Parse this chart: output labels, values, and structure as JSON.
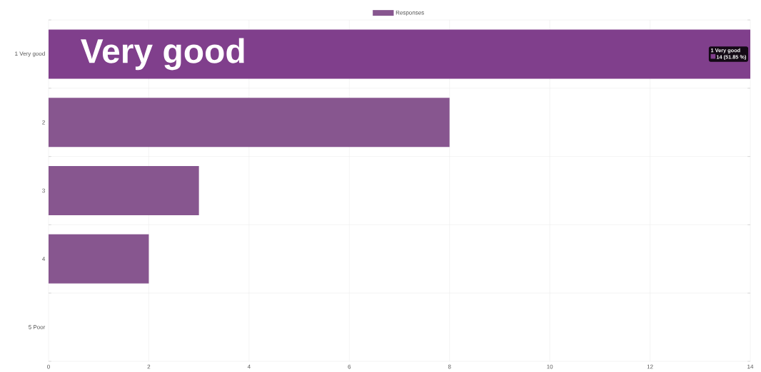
{
  "chart_data": {
    "type": "bar",
    "orientation": "horizontal",
    "categories": [
      "1 Very good",
      "2",
      "3",
      "4",
      "5 Poor"
    ],
    "series": [
      {
        "name": "Responses",
        "color": "#87568f",
        "colors": [
          "#803f8c",
          "#87568f",
          "#87568f",
          "#87568f",
          "#87568f"
        ],
        "values": [
          14,
          8,
          3,
          2,
          0
        ]
      }
    ],
    "xlim": [
      0,
      14
    ],
    "xticks": [
      0,
      2,
      4,
      6,
      8,
      10,
      12,
      14
    ],
    "grid": true,
    "legend": "top",
    "annotations": [
      "Very good",
      {
        "text": "1 Very good",
        "x": 14,
        "y": "1 Very good"
      },
      "14 (51.85 %)"
    ]
  }
}
